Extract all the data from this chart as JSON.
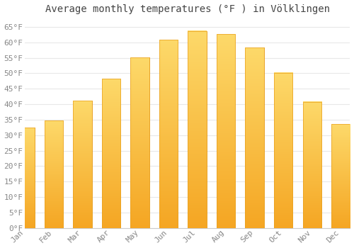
{
  "title": "Average monthly temperatures (°F ) in Völklingen",
  "months": [
    "Jan",
    "Feb",
    "Mar",
    "Apr",
    "May",
    "Jun",
    "Jul",
    "Aug",
    "Sep",
    "Oct",
    "Nov",
    "Dec"
  ],
  "values": [
    32.5,
    34.7,
    41.2,
    48.2,
    55.2,
    60.8,
    63.7,
    62.6,
    58.3,
    50.2,
    40.8,
    33.6
  ],
  "bar_color_top": "#FDD96A",
  "bar_color_bottom": "#F5A623",
  "bar_edge_color": "#E8A020",
  "background_color": "#ffffff",
  "grid_color": "#e8e8e8",
  "ylim": [
    0,
    68
  ],
  "yticks": [
    0,
    5,
    10,
    15,
    20,
    25,
    30,
    35,
    40,
    45,
    50,
    55,
    60,
    65
  ],
  "title_fontsize": 10,
  "tick_fontsize": 8,
  "tick_font_color": "#888888",
  "title_color": "#444444"
}
